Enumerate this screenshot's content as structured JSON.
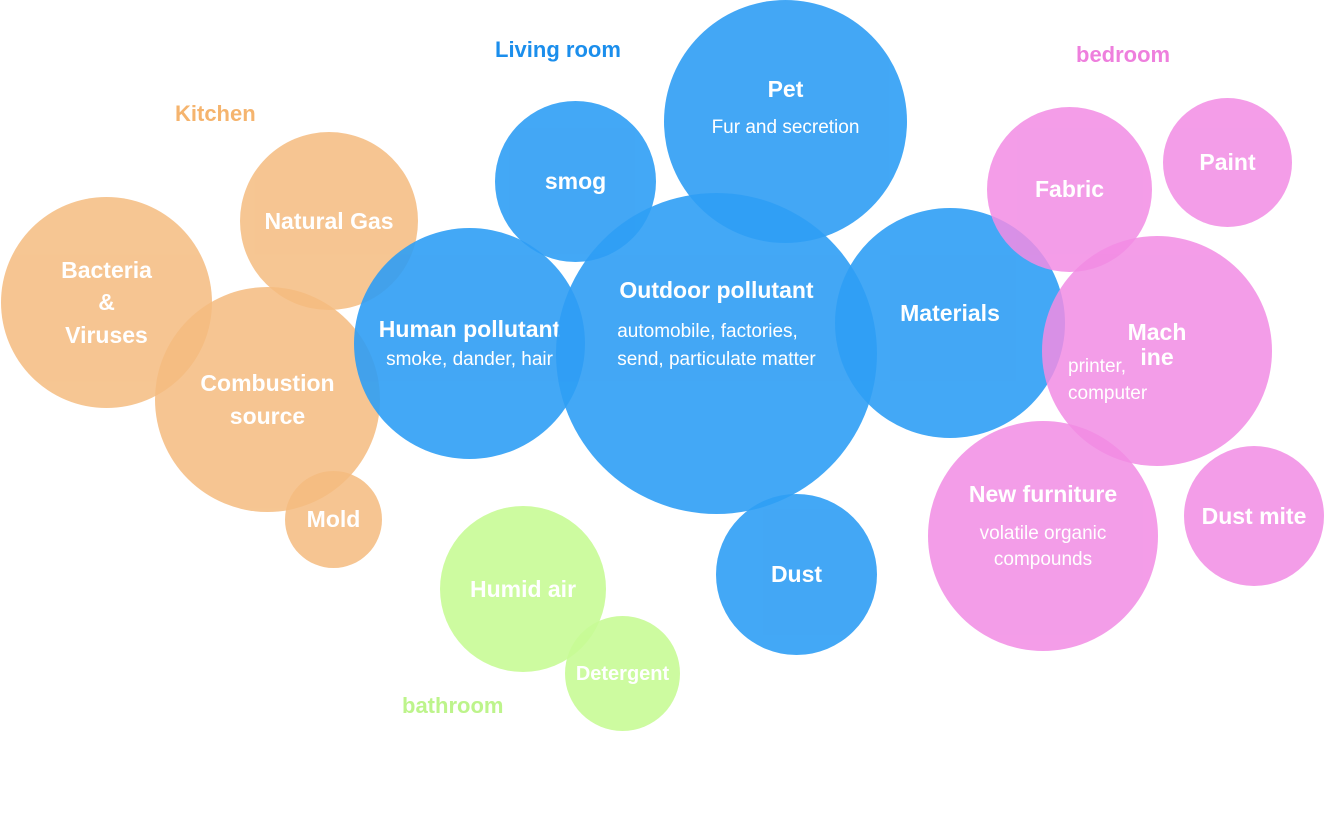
{
  "colors": {
    "kitchen": "#F5BC80",
    "living_room": "#2F9EF5",
    "bedroom": "#F28CE4",
    "bathroom": "#C8FB96",
    "kitchen_label": "#F5B46E",
    "living_room_label": "#1B8EEC",
    "bedroom_label": "#EE7FDD",
    "bathroom_label": "#BDF48B"
  },
  "rooms": {
    "kitchen": "Kitchen",
    "living_room": "Living room",
    "bedroom": "bedroom",
    "bathroom": "bathroom"
  },
  "bubbles": {
    "bacteria": {
      "title": "Bacteria\n&\nViruses"
    },
    "natural_gas": {
      "title": "Natural Gas"
    },
    "combustion": {
      "title": "Combustion\nsource"
    },
    "mold": {
      "title": "Mold"
    },
    "human": {
      "title": "Human pollutant",
      "sub": "smoke, dander, hair"
    },
    "smog": {
      "title": "smog"
    },
    "pet": {
      "title": "Pet",
      "sub": "Fur and  secretion"
    },
    "outdoor": {
      "title": "Outdoor pollutant",
      "sub": "automobile, factories,\nsend, particulate matter"
    },
    "dust": {
      "title": "Dust"
    },
    "materials": {
      "title": "Materials"
    },
    "fabric": {
      "title": "Fabric"
    },
    "paint": {
      "title": "Paint"
    },
    "machine": {
      "title": "Mach\nine",
      "sub": "printer,\ncomputer"
    },
    "new_furniture": {
      "title": "New furniture",
      "sub": "volatile organic\ncompounds"
    },
    "dust_mite": {
      "title": "Dust mite"
    },
    "humid_air": {
      "title": "Humid air"
    },
    "detergent": {
      "title": "Detergent"
    }
  }
}
